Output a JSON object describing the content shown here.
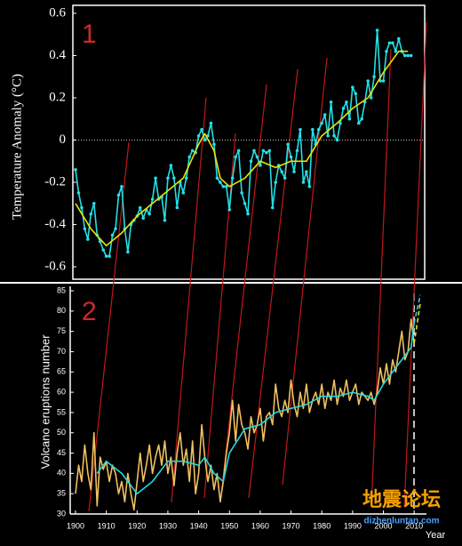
{
  "chart_data": [
    {
      "type": "line",
      "ylabel": "Temperature Anomaly (°C)",
      "annotations": [
        "1"
      ],
      "xlim": [
        1900,
        2014
      ],
      "ylim": [
        -0.6,
        0.6
      ],
      "yticks": [
        -0.6,
        -0.4,
        -0.2,
        0,
        0.2,
        0.4,
        0.6
      ],
      "zero_line": true,
      "series": [
        {
          "color": "#22e0e8",
          "markers": true,
          "x": [
            1900,
            1901,
            1902,
            1903,
            1904,
            1905,
            1906,
            1907,
            1908,
            1909,
            1910,
            1911,
            1912,
            1913,
            1914,
            1915,
            1916,
            1917,
            1918,
            1919,
            1920,
            1921,
            1922,
            1923,
            1924,
            1925,
            1926,
            1927,
            1928,
            1929,
            1930,
            1931,
            1932,
            1933,
            1934,
            1935,
            1936,
            1937,
            1938,
            1939,
            1940,
            1941,
            1942,
            1943,
            1944,
            1945,
            1946,
            1947,
            1948,
            1949,
            1950,
            1951,
            1952,
            1953,
            1954,
            1955,
            1956,
            1957,
            1958,
            1959,
            1960,
            1961,
            1962,
            1963,
            1964,
            1965,
            1966,
            1967,
            1968,
            1969,
            1970,
            1971,
            1972,
            1973,
            1974,
            1975,
            1976,
            1977,
            1978,
            1979,
            1980,
            1981,
            1982,
            1983,
            1984,
            1985,
            1986,
            1987,
            1988,
            1989,
            1990,
            1991,
            1992,
            1993,
            1994,
            1995,
            1996,
            1997,
            1998,
            1999,
            2000,
            2001,
            2002,
            2003,
            2004,
            2005,
            2006,
            2007,
            2008,
            2009
          ],
          "values": [
            -0.14,
            -0.25,
            -0.32,
            -0.42,
            -0.47,
            -0.35,
            -0.3,
            -0.45,
            -0.48,
            -0.52,
            -0.55,
            -0.55,
            -0.45,
            -0.42,
            -0.26,
            -0.22,
            -0.42,
            -0.53,
            -0.4,
            -0.38,
            -0.36,
            -0.32,
            -0.37,
            -0.33,
            -0.35,
            -0.28,
            -0.18,
            -0.28,
            -0.27,
            -0.38,
            -0.18,
            -0.12,
            -0.18,
            -0.32,
            -0.2,
            -0.25,
            -0.18,
            -0.08,
            -0.05,
            -0.06,
            0.02,
            0.05,
            0.0,
            0.02,
            0.08,
            -0.02,
            -0.18,
            -0.2,
            -0.22,
            -0.22,
            -0.33,
            -0.18,
            -0.08,
            -0.05,
            -0.25,
            -0.3,
            -0.35,
            -0.1,
            -0.05,
            -0.08,
            -0.12,
            -0.05,
            -0.06,
            -0.05,
            -0.32,
            -0.2,
            -0.12,
            -0.15,
            -0.18,
            -0.02,
            -0.08,
            -0.15,
            -0.05,
            0.05,
            -0.2,
            -0.15,
            -0.22,
            0.05,
            -0.02,
            0.05,
            0.08,
            0.12,
            0.02,
            0.18,
            0.02,
            0.0,
            0.08,
            0.15,
            0.18,
            0.1,
            0.25,
            0.22,
            0.08,
            0.1,
            0.18,
            0.28,
            0.2,
            0.3,
            0.52,
            0.28,
            0.28,
            0.42,
            0.46,
            0.46,
            0.42,
            0.48,
            0.42,
            0.4,
            0.4,
            0.4
          ]
        },
        {
          "color": "#f0e000",
          "x": [
            1900,
            1905,
            1910,
            1915,
            1920,
            1925,
            1930,
            1935,
            1940,
            1942,
            1945,
            1947,
            1950,
            1955,
            1960,
            1965,
            1970,
            1975,
            1980,
            1985,
            1990,
            1995,
            2000,
            2005,
            2008
          ],
          "values": [
            -0.3,
            -0.42,
            -0.5,
            -0.44,
            -0.36,
            -0.3,
            -0.24,
            -0.18,
            -0.02,
            0.03,
            -0.05,
            -0.18,
            -0.22,
            -0.18,
            -0.1,
            -0.13,
            -0.1,
            -0.1,
            0.02,
            0.08,
            0.15,
            0.2,
            0.32,
            0.42,
            0.42
          ]
        }
      ]
    },
    {
      "type": "line",
      "ylabel": "Volcano eruptions  number",
      "xlabel": "Year",
      "annotations": [
        "2"
      ],
      "xlim": [
        1900,
        2014
      ],
      "xticks": [
        1900,
        1910,
        1920,
        1930,
        1940,
        1950,
        1960,
        1970,
        1980,
        1990,
        2000,
        2010
      ],
      "ylim": [
        30,
        85
      ],
      "yticks": [
        30,
        35,
        40,
        45,
        50,
        55,
        60,
        65,
        70,
        75,
        80,
        85
      ],
      "series": [
        {
          "color": "#f0c060",
          "x": [
            1900,
            1901,
            1902,
            1903,
            1904,
            1905,
            1906,
            1907,
            1908,
            1909,
            1910,
            1911,
            1912,
            1913,
            1914,
            1915,
            1916,
            1917,
            1918,
            1919,
            1920,
            1921,
            1922,
            1923,
            1924,
            1925,
            1926,
            1927,
            1928,
            1929,
            1930,
            1931,
            1932,
            1933,
            1934,
            1935,
            1936,
            1937,
            1938,
            1939,
            1940,
            1941,
            1942,
            1943,
            1944,
            1945,
            1946,
            1947,
            1948,
            1949,
            1950,
            1951,
            1952,
            1953,
            1954,
            1955,
            1956,
            1957,
            1958,
            1959,
            1960,
            1961,
            1962,
            1963,
            1964,
            1965,
            1966,
            1967,
            1968,
            1969,
            1970,
            1971,
            1972,
            1973,
            1974,
            1975,
            1976,
            1977,
            1978,
            1979,
            1980,
            1981,
            1982,
            1983,
            1984,
            1985,
            1986,
            1987,
            1988,
            1989,
            1990,
            1991,
            1992,
            1993,
            1994,
            1995,
            1996,
            1997,
            1998,
            1999,
            2000,
            2001,
            2002,
            2003,
            2004,
            2005,
            2006,
            2007,
            2008,
            2009,
            2010
          ],
          "values": [
            35,
            42,
            38,
            47,
            40,
            36,
            50,
            32,
            44,
            41,
            43,
            38,
            42,
            40,
            35,
            38,
            33,
            40,
            35,
            31,
            38,
            45,
            38,
            42,
            47,
            40,
            44,
            47,
            42,
            48,
            40,
            44,
            37,
            45,
            50,
            42,
            46,
            38,
            48,
            35,
            40,
            52,
            44,
            38,
            42,
            36,
            40,
            33,
            38,
            45,
            50,
            58,
            48,
            57,
            52,
            50,
            46,
            54,
            50,
            52,
            56,
            48,
            54,
            55,
            52,
            62,
            56,
            54,
            58,
            55,
            63,
            57,
            54,
            60,
            56,
            62,
            55,
            58,
            60,
            57,
            62,
            56,
            60,
            58,
            63,
            57,
            61,
            59,
            63,
            58,
            60,
            62,
            57,
            60,
            59,
            58,
            60,
            57,
            60,
            66,
            62,
            67,
            62,
            68,
            65,
            70,
            75,
            68,
            70,
            78,
            72
          ]
        },
        {
          "color": "#22d8e0",
          "x": [
            1907,
            1910,
            1915,
            1920,
            1925,
            1930,
            1935,
            1940,
            1942,
            1945,
            1948,
            1950,
            1955,
            1960,
            1965,
            1970,
            1975,
            1980,
            1985,
            1990,
            1995,
            1997,
            2000,
            2005,
            2009,
            2010
          ],
          "values": [
            40,
            43,
            40,
            35,
            38,
            43,
            43,
            42,
            44,
            40,
            38,
            45,
            51,
            52,
            55,
            56,
            57,
            59,
            59,
            60,
            59,
            58,
            62,
            67,
            71,
            77
          ]
        },
        {
          "color": "#22d8e0",
          "dashed": true,
          "x": [
            2010,
            2012
          ],
          "values": [
            77,
            84
          ]
        },
        {
          "color": "#f0e000",
          "dashed": true,
          "x": [
            2010,
            2012
          ],
          "values": [
            72,
            82
          ]
        }
      ]
    }
  ],
  "watermark": {
    "title": "地震论坛",
    "url": "dizhenluntan.com"
  }
}
